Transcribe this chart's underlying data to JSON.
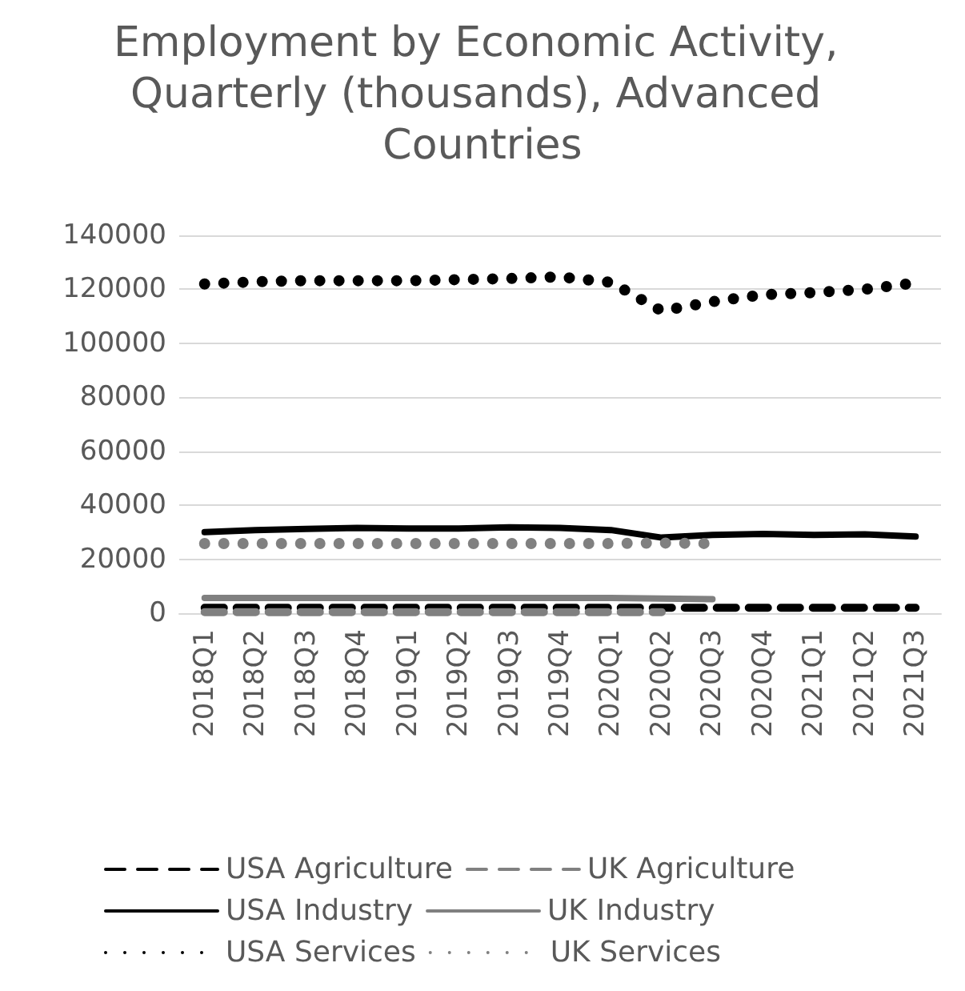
{
  "chart_data": {
    "type": "line",
    "title": "Employment by Economic Activity, Quarterly (thousands), Advanced Countries",
    "categories": [
      "2018Q1",
      "2018Q2",
      "2018Q3",
      "2018Q4",
      "2019Q1",
      "2019Q2",
      "2019Q3",
      "2019Q4",
      "2020Q1",
      "2020Q2",
      "2020Q3",
      "2020Q4",
      "2021Q1",
      "2021Q2",
      "2021Q3"
    ],
    "series": [
      {
        "name": "USA Agriculture",
        "color": "#000000",
        "line_style": "dashed",
        "values": [
          2000,
          2000,
          2000,
          2000,
          2000,
          2000,
          2000,
          2000,
          2000,
          2000,
          2000,
          2000,
          2000,
          2000,
          2000
        ]
      },
      {
        "name": "UK Agriculture",
        "color": "#808080",
        "line_style": "dashed",
        "values": [
          400,
          400,
          400,
          400,
          400,
          400,
          400,
          400,
          400,
          400,
          null,
          null,
          null,
          null,
          null
        ]
      },
      {
        "name": "USA Industry",
        "color": "#000000",
        "line_style": "solid",
        "values": [
          30000,
          30800,
          31200,
          31600,
          31400,
          31400,
          31800,
          31600,
          30800,
          28000,
          29000,
          29400,
          29000,
          29200,
          28400
        ]
      },
      {
        "name": "UK Industry",
        "color": "#808080",
        "line_style": "solid",
        "values": [
          5600,
          5600,
          5600,
          5600,
          5600,
          5600,
          5600,
          5600,
          5600,
          5400,
          5200,
          null,
          null,
          null,
          null
        ]
      },
      {
        "name": "USA Services",
        "color": "#000000",
        "line_style": "dotted",
        "values": [
          122000,
          122800,
          123200,
          123200,
          123200,
          123600,
          124000,
          124600,
          122600,
          112000,
          115400,
          118000,
          118800,
          120000,
          122400
        ]
      },
      {
        "name": "UK Services",
        "color": "#808080",
        "line_style": "dotted",
        "values": [
          25800,
          25800,
          25800,
          25800,
          25800,
          25800,
          25800,
          25800,
          25800,
          26000,
          25800,
          null,
          null,
          null,
          null
        ]
      }
    ],
    "ylim": [
      0,
      140000
    ],
    "yticks": [
      0,
      20000,
      40000,
      60000,
      80000,
      100000,
      120000,
      140000
    ],
    "grid": "y",
    "legend": "bottom",
    "marker": "none"
  }
}
